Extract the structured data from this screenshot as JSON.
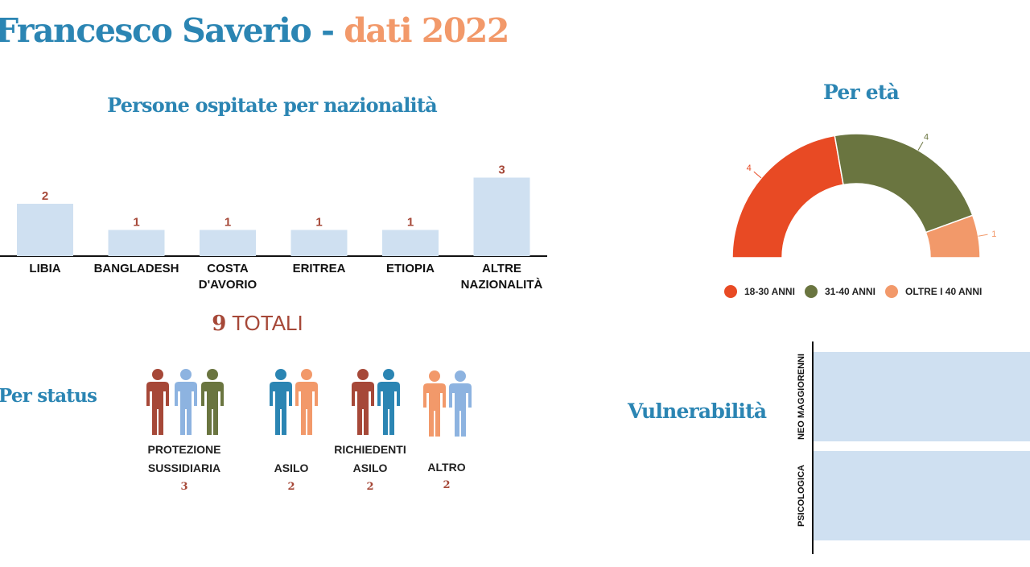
{
  "title": {
    "part1": "Francesco Saverio - ",
    "part2": "dati 2022"
  },
  "colors": {
    "blue_title": "#2b85b3",
    "orange_title": "#f2996a",
    "bar": "#cfe0f1",
    "value_red": "#a64838",
    "age_red": "#e84a24",
    "age_green": "#6a7540",
    "age_orange": "#f2996a"
  },
  "chart_data": [
    {
      "type": "bar",
      "title": "Persone ospitate per nazionalità",
      "categories": [
        "LIBIA",
        "BANGLADESH",
        "COSTA D'AVORIO",
        "ERITREA",
        "ETIOPIA",
        "ALTRE NAZIONALITÀ"
      ],
      "category_lines": [
        [
          "LIBIA"
        ],
        [
          "BANGLADESH"
        ],
        [
          "COSTA",
          "D'AVORIO"
        ],
        [
          "ERITREA"
        ],
        [
          "ETIOPIA"
        ],
        [
          "ALTRE",
          "NAZIONALITÀ"
        ]
      ],
      "values": [
        2,
        1,
        1,
        1,
        1,
        3
      ]
    },
    {
      "type": "pie",
      "variant": "half-donut",
      "title": "Per età",
      "categories": [
        "18-30 ANNI",
        "31-40 ANNI",
        "OLTRE I 40 ANNI"
      ],
      "values": [
        4,
        4,
        1
      ],
      "colors": [
        "#e84a24",
        "#6a7540",
        "#f2996a"
      ],
      "legend": "bottom"
    },
    {
      "type": "bar",
      "orientation": "horizontal",
      "title": "Vulnerabilità",
      "categories": [
        "NEO MAGGIORENNI",
        "PSICOLOGICA"
      ]
    }
  ],
  "totals": {
    "number": "9",
    "label": "TOTALI"
  },
  "status": {
    "title": "Per status",
    "groups": [
      {
        "label_lines": [
          "PROTEZIONE",
          "SUSSIDIARIA"
        ],
        "value": "3",
        "people": [
          "#a64838",
          "#8db3e0",
          "#6a7540"
        ]
      },
      {
        "label_lines": [
          "ASILO"
        ],
        "value": "2",
        "people": [
          "#2b85b3",
          "#f2996a"
        ]
      },
      {
        "label_lines": [
          "RICHIEDENTI",
          "ASILO"
        ],
        "value": "2",
        "people": [
          "#a64838",
          "#2b85b3"
        ]
      },
      {
        "label_lines": [
          "ALTRO"
        ],
        "value": "2",
        "people": [
          "#f2996a",
          "#8db3e0"
        ]
      }
    ]
  }
}
